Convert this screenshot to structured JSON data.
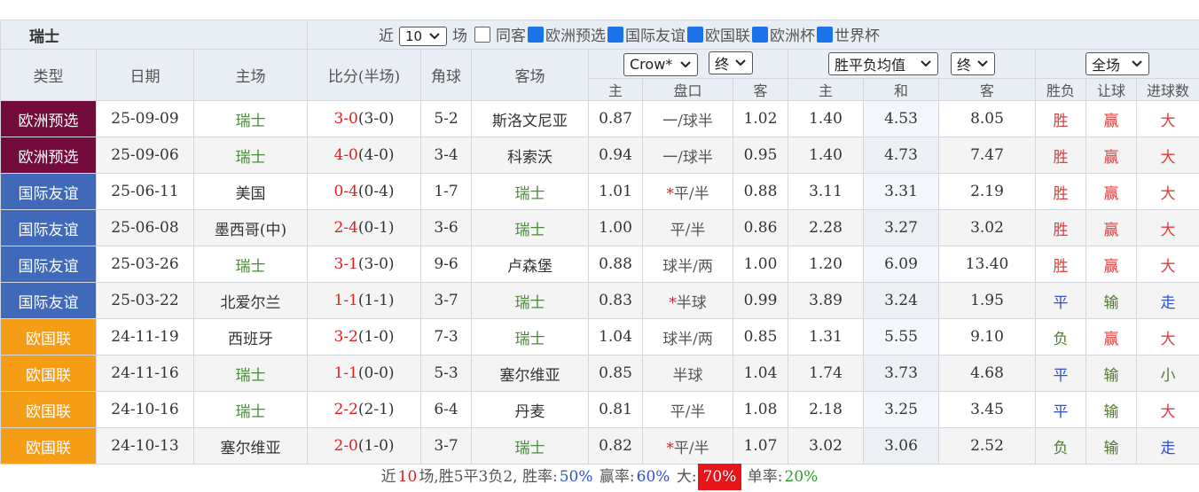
{
  "header": {
    "team": "瑞士",
    "recent_label": "近",
    "recent_count": "10",
    "recent_unit": "场",
    "same_host": "同客",
    "filters": [
      "欧洲预选",
      "国际友谊",
      "欧国联",
      "欧洲杯",
      "世界杯"
    ]
  },
  "columns": [
    "类型",
    "日期",
    "主场",
    "比分(半场)",
    "角球",
    "客场"
  ],
  "selects": [
    "Crow*",
    "终",
    "胜平负均值",
    "终",
    "全场"
  ],
  "sub_columns": [
    "主",
    "盘口",
    "客",
    "主",
    "和",
    "客",
    "胜负",
    "让球",
    "进球数"
  ],
  "type_colors": {
    "欧洲预选": "#730c3c",
    "国际友谊": "#4169b9",
    "欧国联": "#f59d14"
  },
  "result_colors": {
    "胜": "#e03a3a",
    "平": "#2f4fd0",
    "负": "#4f7c2a",
    "赢": "#e03a3a",
    "输": "#4f7c2a",
    "大": "#e03a3a",
    "走": "#2f4fd0",
    "小": "#4f7c2a"
  },
  "rows": [
    {
      "type": "欧洲预选",
      "date": "25-09-09",
      "home": "瑞士",
      "score": "3-0",
      "half": "(3-0)",
      "corner": "5-2",
      "away": "斯洛文尼亚",
      "odds_home": "0.87",
      "handicap": "一/球半",
      "odds_away": "1.02",
      "avg_home": "1.40",
      "avg_draw": "4.53",
      "avg_away": "8.05",
      "result": "胜",
      "hc_result": "赢",
      "goals": "大"
    },
    {
      "type": "欧洲预选",
      "date": "25-09-06",
      "home": "瑞士",
      "score": "4-0",
      "half": "(4-0)",
      "corner": "3-4",
      "away": "科索沃",
      "odds_home": "0.94",
      "handicap": "一/球半",
      "odds_away": "0.95",
      "avg_home": "1.40",
      "avg_draw": "4.73",
      "avg_away": "7.47",
      "result": "胜",
      "hc_result": "赢",
      "goals": "大"
    },
    {
      "type": "国际友谊",
      "date": "25-06-11",
      "home": "美国",
      "score": "0-4",
      "half": "(0-4)",
      "corner": "1-7",
      "away": "瑞士",
      "odds_home": "1.01",
      "star": "*",
      "handicap": "平/半",
      "odds_away": "0.88",
      "avg_home": "3.11",
      "avg_draw": "3.31",
      "avg_away": "2.19",
      "result": "胜",
      "hc_result": "赢",
      "goals": "大"
    },
    {
      "type": "国际友谊",
      "date": "25-06-08",
      "home": "墨西哥(中)",
      "score": "2-4",
      "half": "(0-1)",
      "corner": "3-6",
      "away": "瑞士",
      "odds_home": "1.00",
      "handicap": "平/半",
      "odds_away": "0.86",
      "avg_home": "2.28",
      "avg_draw": "3.27",
      "avg_away": "3.02",
      "result": "胜",
      "hc_result": "赢",
      "goals": "大"
    },
    {
      "type": "国际友谊",
      "date": "25-03-26",
      "home": "瑞士",
      "score": "3-1",
      "half": "(3-0)",
      "corner": "9-6",
      "away": "卢森堡",
      "odds_home": "0.88",
      "handicap": "球半/两",
      "odds_away": "1.00",
      "avg_home": "1.20",
      "avg_draw": "6.09",
      "avg_away": "13.40",
      "result": "胜",
      "hc_result": "赢",
      "goals": "大"
    },
    {
      "type": "国际友谊",
      "date": "25-03-22",
      "home": "北爱尔兰",
      "score": "1-1",
      "half": "(1-1)",
      "corner": "3-7",
      "away": "瑞士",
      "odds_home": "0.83",
      "star": "*",
      "handicap": "半球",
      "odds_away": "0.99",
      "avg_home": "3.89",
      "avg_draw": "3.24",
      "avg_away": "1.95",
      "result": "平",
      "hc_result": "输",
      "goals": "走"
    },
    {
      "type": "欧国联",
      "date": "24-11-19",
      "home": "西班牙",
      "score": "3-2",
      "half": "(1-0)",
      "corner": "7-3",
      "away": "瑞士",
      "odds_home": "1.04",
      "handicap": "球半/两",
      "odds_away": "0.85",
      "avg_home": "1.31",
      "avg_draw": "5.55",
      "avg_away": "9.10",
      "result": "负",
      "hc_result": "赢",
      "goals": "大"
    },
    {
      "type": "欧国联",
      "date": "24-11-16",
      "home": "瑞士",
      "score": "1-1",
      "half": "(0-0)",
      "corner": "5-3",
      "away": "塞尔维亚",
      "odds_home": "0.85",
      "handicap": "半球",
      "odds_away": "1.04",
      "avg_home": "1.74",
      "avg_draw": "3.73",
      "avg_away": "4.68",
      "result": "平",
      "hc_result": "输",
      "goals": "小"
    },
    {
      "type": "欧国联",
      "date": "24-10-16",
      "home": "瑞士",
      "score": "2-2",
      "half": "(2-1)",
      "corner": "6-4",
      "away": "丹麦",
      "odds_home": "0.81",
      "handicap": "平/半",
      "odds_away": "1.08",
      "avg_home": "2.18",
      "avg_draw": "3.25",
      "avg_away": "3.45",
      "result": "平",
      "hc_result": "输",
      "goals": "大"
    },
    {
      "type": "欧国联",
      "date": "24-10-13",
      "home": "塞尔维亚",
      "score": "2-0",
      "half": "(1-0)",
      "corner": "3-7",
      "away": "瑞士",
      "odds_home": "0.82",
      "star": "*",
      "handicap": "平/半",
      "odds_away": "1.07",
      "avg_home": "3.02",
      "avg_draw": "3.06",
      "avg_away": "2.52",
      "result": "负",
      "hc_result": "输",
      "goals": "走"
    }
  ],
  "footer": [
    {
      "text": "近"
    },
    {
      "text": "10",
      "color": "#e02020"
    },
    {
      "text": "场,胜5平3负2, 胜率:"
    },
    {
      "text": "50%",
      "color": "#2f4fd0"
    },
    {
      "text": " 赢率:"
    },
    {
      "text": "60%",
      "color": "#2f4fd0"
    },
    {
      "text": " 大:"
    },
    {
      "text": "70%",
      "color": "#ffffff",
      "background": "#e8141a"
    },
    {
      "text": " 单率:"
    },
    {
      "text": "20%",
      "color": "#2e9a2e"
    }
  ]
}
